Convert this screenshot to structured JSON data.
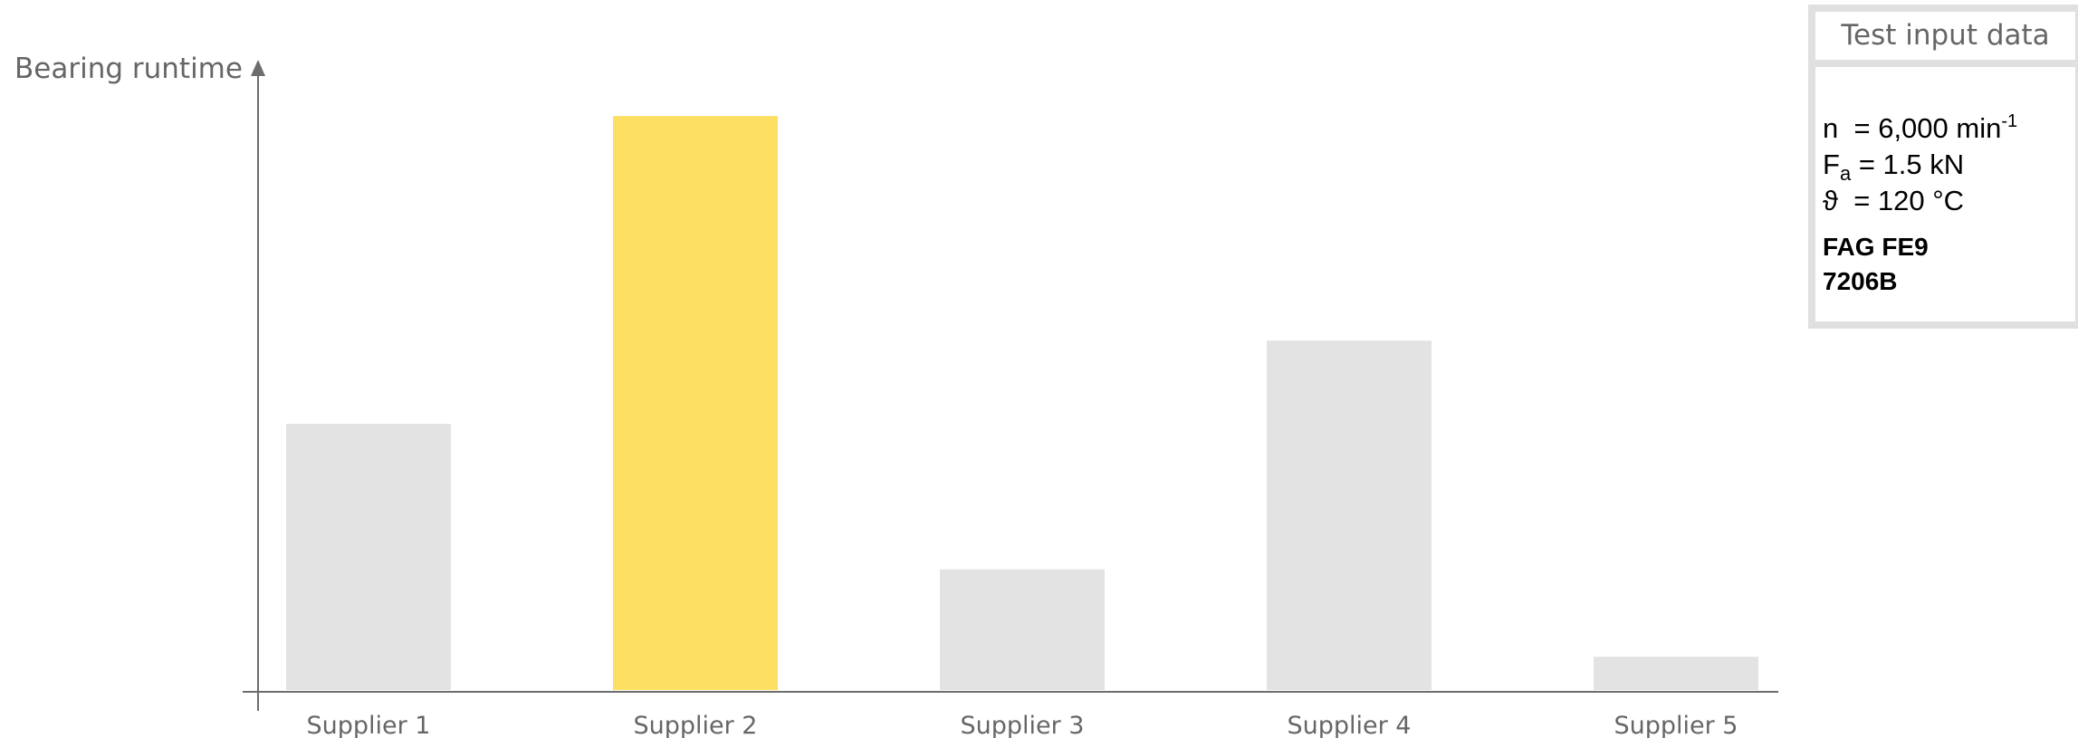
{
  "chart_data": {
    "type": "bar",
    "ylabel": "Bearing runtime",
    "categories": [
      "Supplier 1",
      "Supplier 2",
      "Supplier 3",
      "Supplier 4",
      "Supplier 5"
    ],
    "values": [
      32,
      69,
      14.5,
      42,
      4
    ],
    "bar_colors": [
      "#e3e3e3",
      "#fde062",
      "#e3e3e3",
      "#e3e3e3",
      "#e3e3e3"
    ],
    "highlight_category": "Supplier 2",
    "ylim": [
      0,
      75
    ],
    "y_ticks_shown": false,
    "grid": false
  },
  "info_box": {
    "title": "Test input data",
    "params": [
      {
        "symbol": "n",
        "subscript": "",
        "value": "= 6,000 min",
        "superscript": "-1"
      },
      {
        "symbol": "F",
        "subscript": "a",
        "value": "= 1.5 kN",
        "superscript": ""
      },
      {
        "symbol": "ϑ",
        "subscript": "",
        "value": "= 120 °C",
        "superscript": ""
      }
    ],
    "bearing_lines": [
      "FAG FE9",
      "7206B"
    ]
  },
  "colors": {
    "axis": "#6d6d6d",
    "muted_text": "#666666",
    "box_border": "#e0e0e0"
  }
}
